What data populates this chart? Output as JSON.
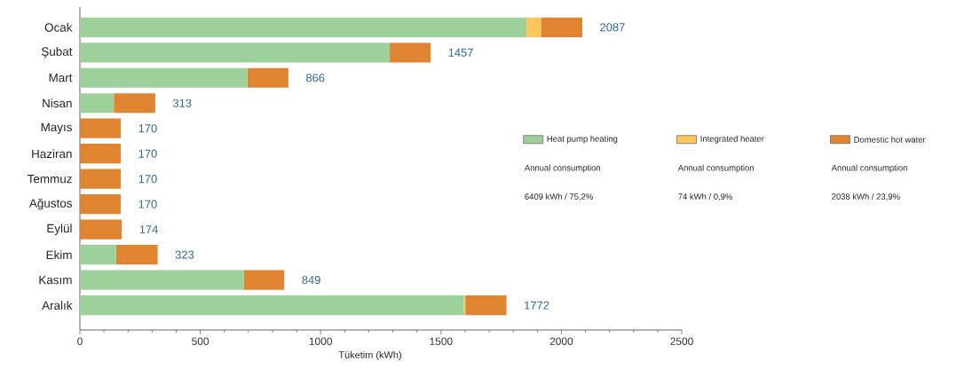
{
  "chart_data": {
    "type": "bar",
    "orientation": "horizontal",
    "stacked": true,
    "xlabel": "Tüketim (kWh)",
    "categories": [
      "Ocak",
      "Şubat",
      "Mart",
      "Nisan",
      "Mayıs",
      "Haziran",
      "Temmuz",
      "Ağustos",
      "Eylül",
      "Ekim",
      "Kasım",
      "Aralık"
    ],
    "series": [
      {
        "name": "Heat pump heating",
        "color": "#9dd09a",
        "values": [
          1855,
          1287,
          696,
          141,
          0,
          0,
          0,
          0,
          0,
          150,
          681,
          1595
        ]
      },
      {
        "name": "Integrated heater",
        "color": "#fcc65c",
        "values": [
          60,
          0,
          0,
          0,
          0,
          0,
          0,
          0,
          0,
          0,
          0,
          6
        ]
      },
      {
        "name": "Domestic hot water",
        "color": "#df8430",
        "values": [
          172,
          170,
          170,
          172,
          170,
          170,
          170,
          170,
          174,
          173,
          168,
          171
        ]
      }
    ],
    "totals": [
      "2087",
      "1457",
      "866",
      "313",
      "170",
      "170",
      "170",
      "170",
      "174",
      "323",
      "849",
      "1772"
    ],
    "xlim": [
      0,
      2500
    ],
    "xticks": [
      0,
      500,
      1000,
      1500,
      2000,
      2500
    ],
    "grid": false,
    "legend": "right",
    "annotations": [
      "Annual consumption",
      "6409 kWh / 75,2%",
      "Annual consumption",
      "74 kWh / 0,9%",
      "Annual consumption",
      "2038 kWh / 23,9%"
    ]
  }
}
